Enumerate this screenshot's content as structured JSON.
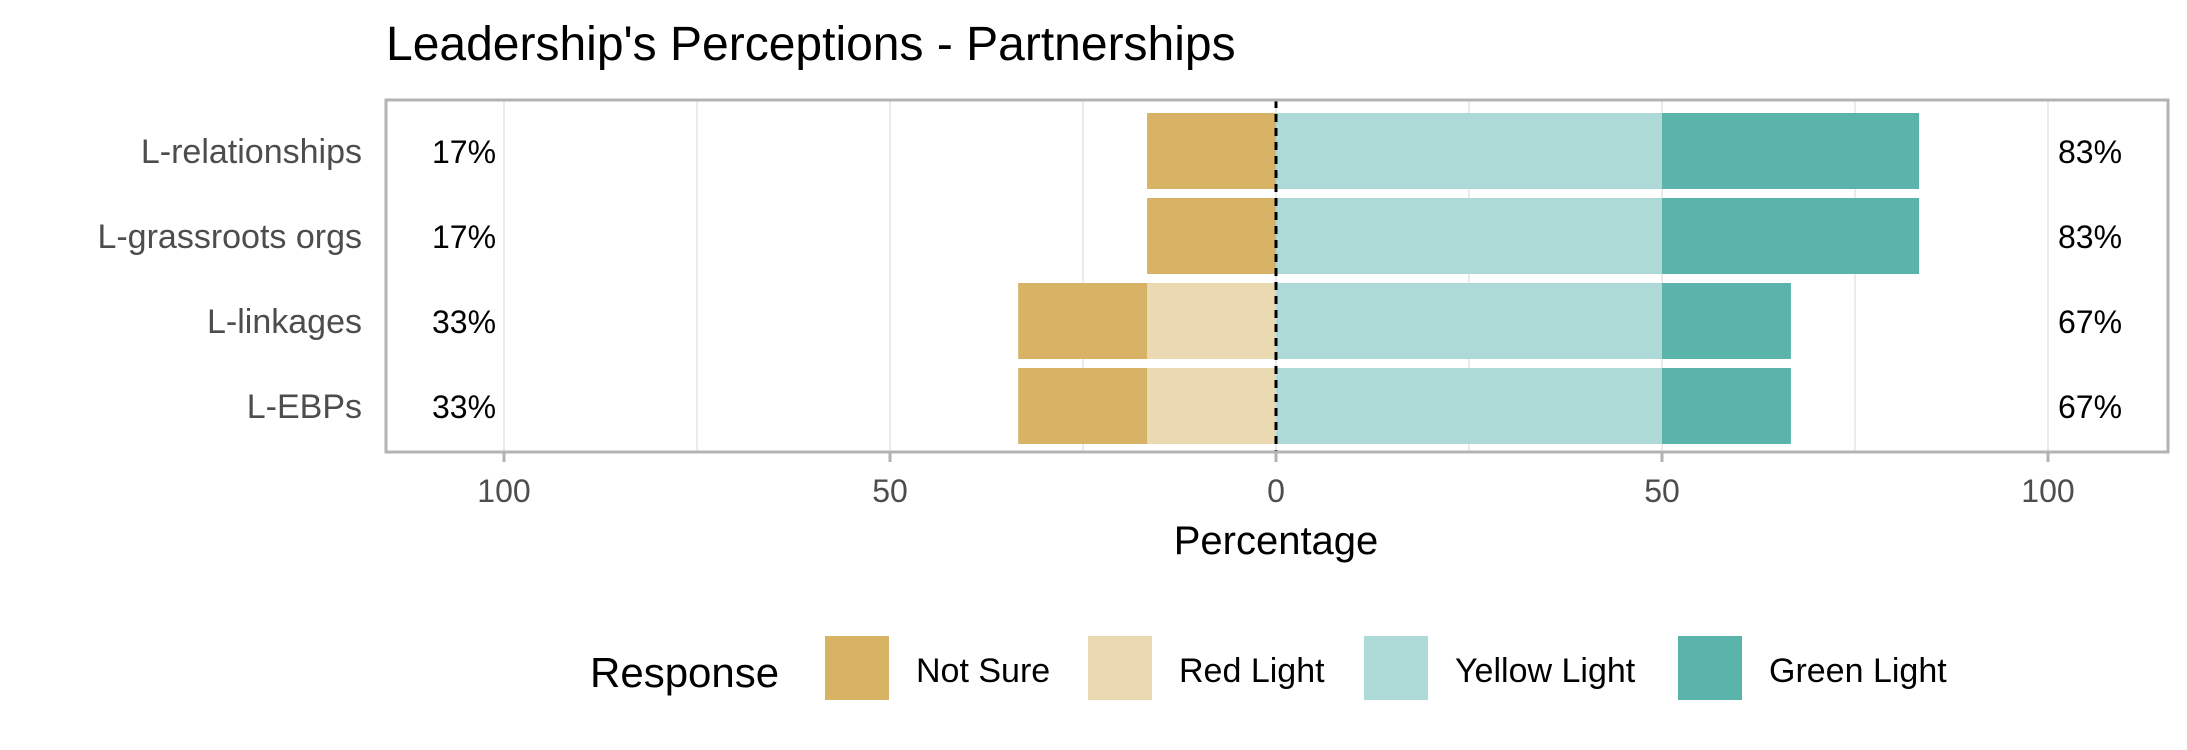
{
  "chart_data": {
    "type": "bar",
    "subtype": "diverging-stacked-horizontal",
    "title": "Leadership's Perceptions - Partnerships",
    "xlabel": "Percentage",
    "ylabel": "",
    "xlim": [
      -100,
      100
    ],
    "x_ticks": [
      -100,
      -50,
      0,
      50,
      100
    ],
    "x_tick_labels": [
      "100",
      "50",
      "0",
      "50",
      "100"
    ],
    "grid": true,
    "legend_position": "bottom",
    "legend_title": "Response",
    "categories": [
      "L-relationships",
      "L-grassroots orgs",
      "L-linkages",
      "L-EBPs"
    ],
    "series": [
      {
        "name": "Not Sure",
        "color": "#D8B365",
        "side": "negative",
        "values": [
          16.7,
          16.7,
          16.7,
          16.7
        ]
      },
      {
        "name": "Red Light",
        "color": "#EBD9B2",
        "side": "negative",
        "values": [
          0,
          0,
          16.7,
          16.7
        ]
      },
      {
        "name": "Yellow Light",
        "color": "#ADDAD6",
        "side": "positive",
        "values": [
          50,
          50,
          50,
          50
        ]
      },
      {
        "name": "Green Light",
        "color": "#5AB4AC",
        "side": "positive",
        "values": [
          33.3,
          33.3,
          16.7,
          16.7
        ]
      }
    ],
    "left_labels": [
      "17%",
      "17%",
      "33%",
      "33%"
    ],
    "right_labels": [
      "83%",
      "83%",
      "67%",
      "67%"
    ]
  }
}
